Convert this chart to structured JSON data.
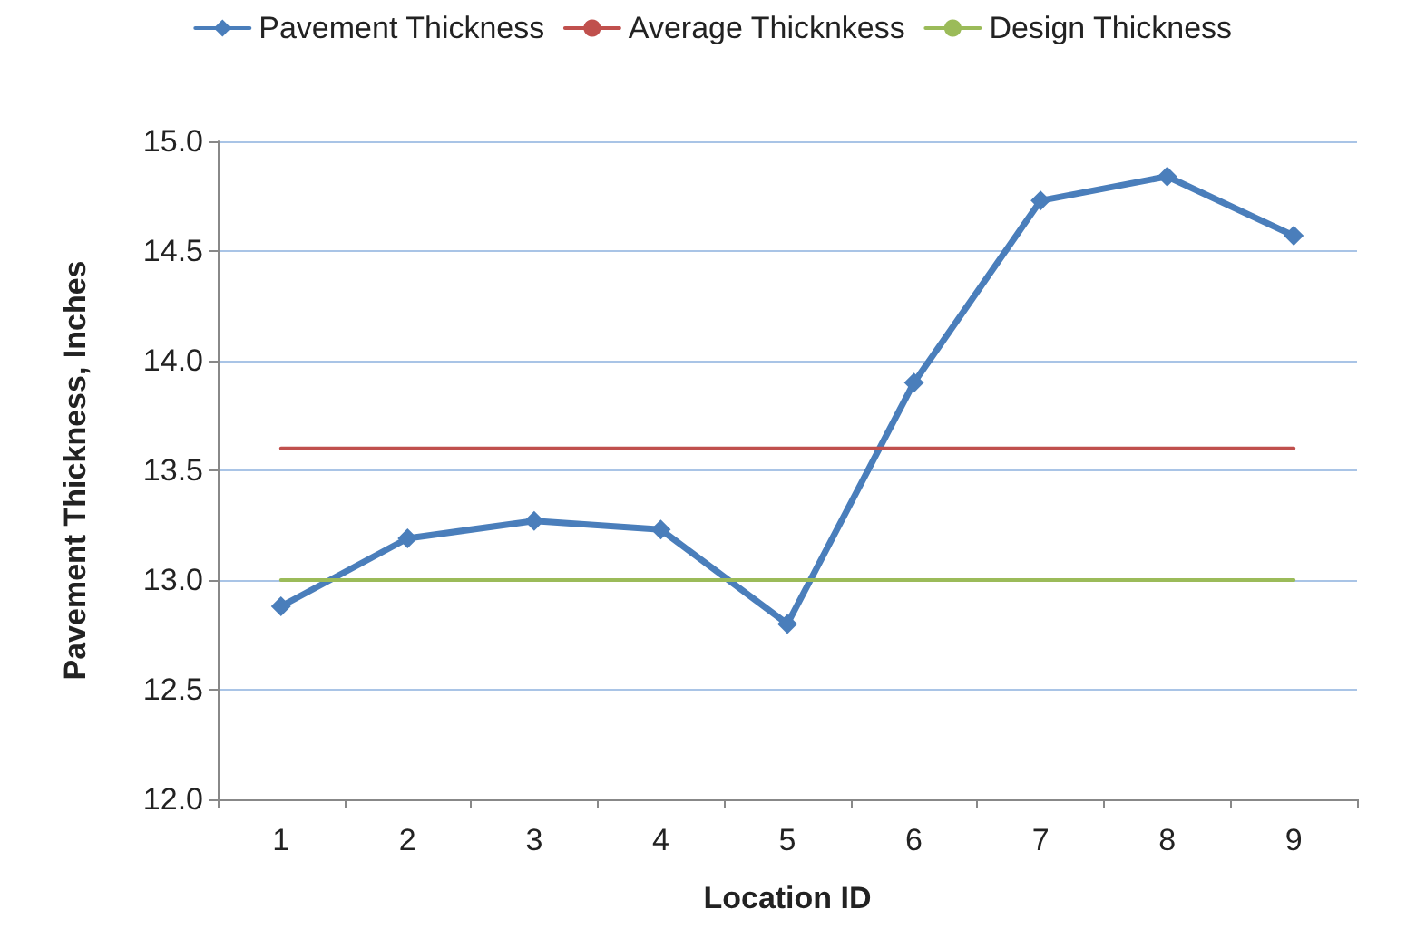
{
  "chart_data": {
    "type": "line",
    "xlabel": "Location ID",
    "ylabel": "Pavement Thickness, Inches",
    "categories": [
      "1",
      "2",
      "3",
      "4",
      "5",
      "6",
      "7",
      "8",
      "9"
    ],
    "series": [
      {
        "name": "Pavement Thickness",
        "color": "#4a7ebb",
        "marker": "diamond",
        "values": [
          12.88,
          13.19,
          13.27,
          13.23,
          12.8,
          13.9,
          14.73,
          14.84,
          14.57
        ]
      },
      {
        "name": "Average Thicknkess",
        "color": "#c0504d",
        "marker": "none",
        "values": [
          13.6,
          13.6,
          13.6,
          13.6,
          13.6,
          13.6,
          13.6,
          13.6,
          13.6
        ]
      },
      {
        "name": "Design Thickness",
        "color": "#9bbb59",
        "marker": "none",
        "values": [
          13.0,
          13.0,
          13.0,
          13.0,
          13.0,
          13.0,
          13.0,
          13.0,
          13.0
        ]
      }
    ],
    "ylim": [
      12.0,
      15.0
    ],
    "yticks": [
      {
        "value": 12,
        "label": "12.0"
      },
      {
        "value": 12.5,
        "label": "12.5"
      },
      {
        "value": 13,
        "label": "13.0"
      },
      {
        "value": 13.5,
        "label": "13.5"
      },
      {
        "value": 14,
        "label": "14.0"
      },
      {
        "value": 14.5,
        "label": "14.5"
      },
      {
        "value": 15,
        "label": "15.0"
      }
    ],
    "grid": "y",
    "legend": "top",
    "line_style": "solid"
  }
}
